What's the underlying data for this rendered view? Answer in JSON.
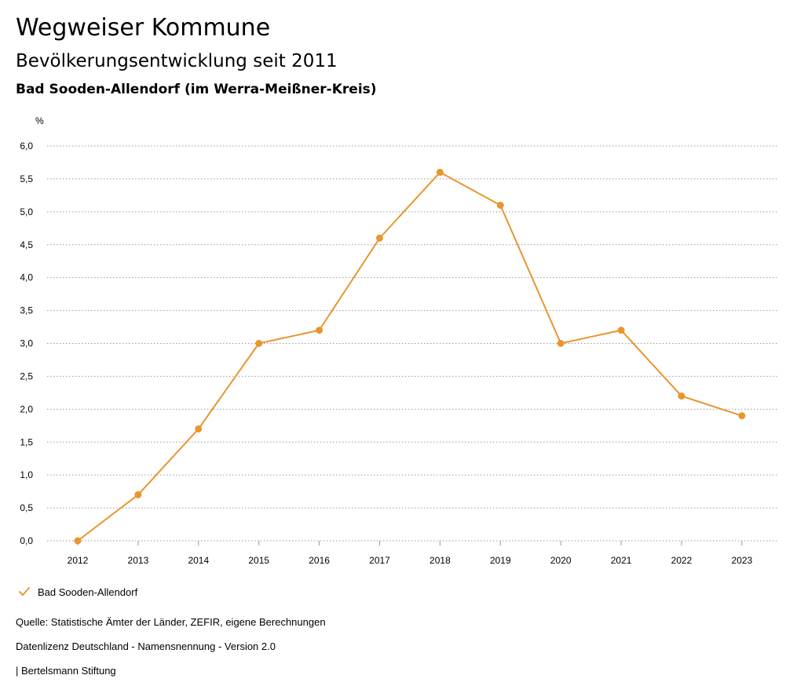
{
  "header": {
    "title": "Wegweiser Kommune",
    "subtitle": "Bevölkerungsentwicklung seit 2011",
    "region": "Bad Sooden-Allendorf (im Werra-Meißner-Kreis)"
  },
  "chart_data": {
    "type": "line",
    "x": [
      "2012",
      "2013",
      "2014",
      "2015",
      "2016",
      "2017",
      "2018",
      "2019",
      "2020",
      "2021",
      "2022",
      "2023"
    ],
    "series": [
      {
        "name": "Bad Sooden-Allendorf",
        "values": [
          0.0,
          0.7,
          1.7,
          3.0,
          3.2,
          4.6,
          5.6,
          5.1,
          3.0,
          3.2,
          2.2,
          1.9
        ],
        "color": "#E8962E"
      }
    ],
    "ylabel": "%",
    "ylim": [
      0,
      6
    ],
    "yticks": [
      "0,0",
      "0,5",
      "1,0",
      "1,5",
      "2,0",
      "2,5",
      "3,0",
      "3,5",
      "4,0",
      "4,5",
      "5,0",
      "5,5",
      "6,0"
    ],
    "grid": true,
    "legend": "bottom-left"
  },
  "legend": {
    "label": "Bad Sooden-Allendorf"
  },
  "footer": {
    "source": "Quelle: Statistische Ämter der Länder, ZEFIR, eigene Berechnungen",
    "license": "Datenlizenz Deutschland - Namensnennung - Version 2.0",
    "publisher": "| Bertelsmann Stiftung"
  }
}
